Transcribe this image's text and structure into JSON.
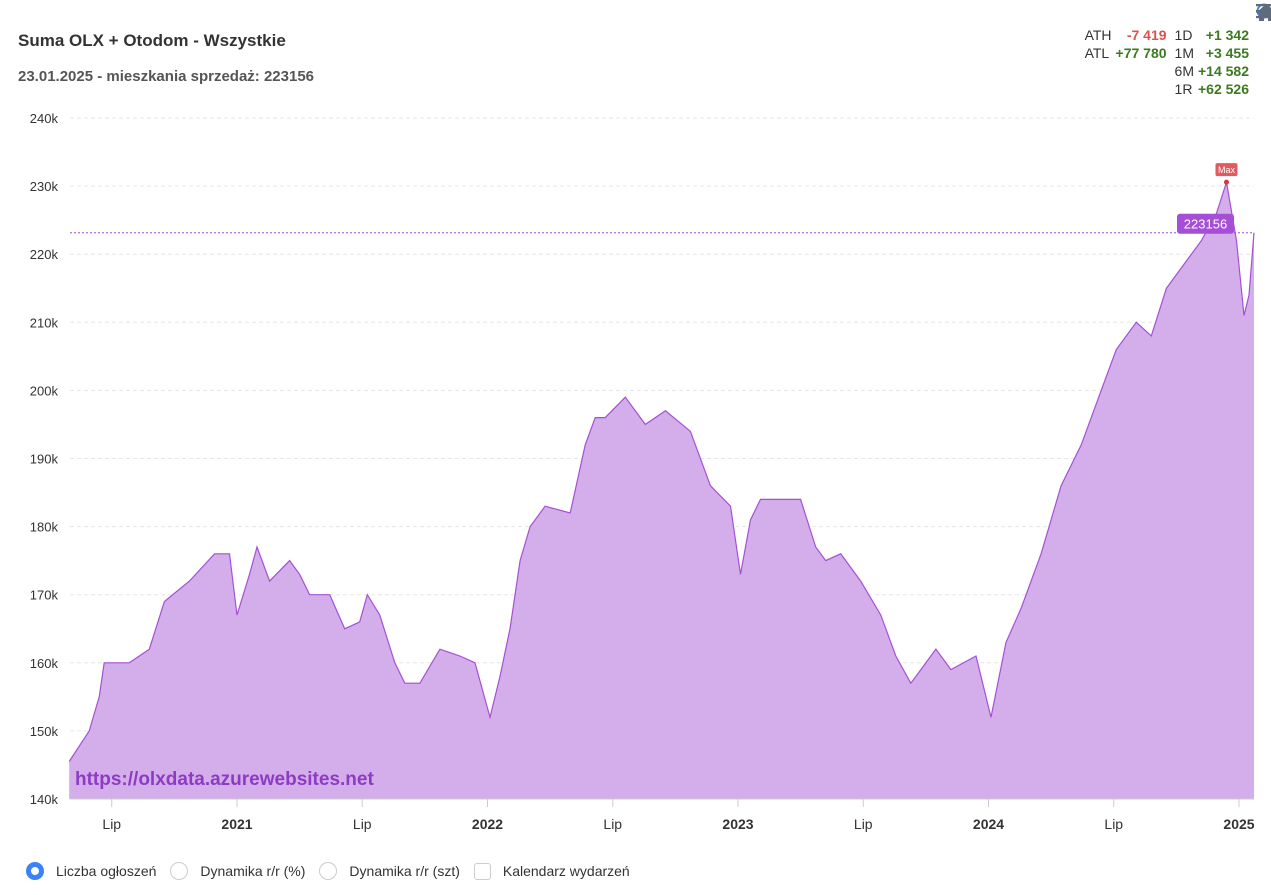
{
  "header": {
    "title": "Suma OLX + Otodom - Wszystkie",
    "subtitle": "23.01.2025 - mieszkania sprzedaż: 223156"
  },
  "stats": [
    {
      "label": "ATH",
      "value": "-7 419",
      "kind": "neg",
      "label2": "1D",
      "value2": "+1 342"
    },
    {
      "label": "ATL",
      "value": "+77 780",
      "kind": "pos",
      "label2": "1M",
      "value2": "+3 455"
    },
    {
      "label": "",
      "value": "",
      "kind": "",
      "label2": "6M",
      "value2": "+14 582"
    },
    {
      "label": "",
      "value": "",
      "kind": "",
      "label2": "1R",
      "value2": "+62 526"
    }
  ],
  "toolbar": {
    "icons": [
      "zoom-in-icon",
      "home-icon",
      "menu-icon"
    ]
  },
  "watermark": "https://olxdata.azurewebsites.net",
  "legend": [
    {
      "label": "Liczba ogłoszeń",
      "type": "radio",
      "checked": true
    },
    {
      "label": "Dynamika r/r (%)",
      "type": "radio",
      "checked": false
    },
    {
      "label": "Dynamika r/r (szt)",
      "type": "radio",
      "checked": false
    },
    {
      "label": "Kalendarz wydarzeń",
      "type": "checkbox",
      "checked": false
    }
  ],
  "chart_data": {
    "type": "area",
    "title": "Suma OLX + Otodom - Wszystkie",
    "ylim": [
      140000,
      240000
    ],
    "yticks": [
      140000,
      150000,
      160000,
      170000,
      180000,
      190000,
      200000,
      210000,
      220000,
      230000,
      240000
    ],
    "ytick_labels": [
      "140k",
      "150k",
      "160k",
      "170k",
      "180k",
      "190k",
      "200k",
      "210k",
      "220k",
      "230k",
      "240k"
    ],
    "xticks": [
      {
        "x": 2020.5,
        "label": "Lip",
        "bold": false
      },
      {
        "x": 2021,
        "label": "2021",
        "bold": true
      },
      {
        "x": 2021.5,
        "label": "Lip",
        "bold": false
      },
      {
        "x": 2022,
        "label": "2022",
        "bold": true
      },
      {
        "x": 2022.5,
        "label": "Lip",
        "bold": false
      },
      {
        "x": 2023,
        "label": "2023",
        "bold": true
      },
      {
        "x": 2023.5,
        "label": "Lip",
        "bold": false
      },
      {
        "x": 2024,
        "label": "2024",
        "bold": true
      },
      {
        "x": 2024.5,
        "label": "Lip",
        "bold": false
      },
      {
        "x": 2025,
        "label": "2025",
        "bold": true
      }
    ],
    "xlim": [
      2020.33,
      2025.06
    ],
    "grid": true,
    "color": "#a64fd6",
    "fill": "#d4aeea",
    "current_label": "223156",
    "current_value": 223156,
    "max_label": "Max",
    "max_point": {
      "x": 2024.95,
      "y": 230575
    },
    "x": [
      2020.33,
      2020.41,
      2020.45,
      2020.47,
      2020.57,
      2020.65,
      2020.71,
      2020.81,
      2020.91,
      2020.97,
      2021.0,
      2021.05,
      2021.08,
      2021.13,
      2021.21,
      2021.25,
      2021.29,
      2021.37,
      2021.43,
      2021.49,
      2021.52,
      2021.57,
      2021.63,
      2021.67,
      2021.73,
      2021.81,
      2021.89,
      2021.95,
      2022.01,
      2022.05,
      2022.09,
      2022.13,
      2022.17,
      2022.23,
      2022.33,
      2022.39,
      2022.43,
      2022.47,
      2022.55,
      2022.63,
      2022.71,
      2022.81,
      2022.89,
      2022.97,
      2023.01,
      2023.05,
      2023.09,
      2023.21,
      2023.25,
      2023.31,
      2023.35,
      2023.41,
      2023.49,
      2023.57,
      2023.63,
      2023.69,
      2023.73,
      2023.79,
      2023.85,
      2023.95,
      2024.01,
      2024.07,
      2024.13,
      2024.21,
      2024.29,
      2024.37,
      2024.45,
      2024.51,
      2024.59,
      2024.65,
      2024.71,
      2024.79,
      2024.85,
      2024.91,
      2024.95,
      2024.99,
      2025.02,
      2025.04,
      2025.06
    ],
    "y": [
      145500,
      150000,
      155000,
      160000,
      160000,
      162000,
      169000,
      172000,
      176000,
      176000,
      167000,
      173000,
      177000,
      172000,
      175000,
      173000,
      170000,
      170000,
      165000,
      166000,
      170000,
      167000,
      160000,
      157000,
      157000,
      162000,
      161000,
      160000,
      152000,
      158000,
      165000,
      175000,
      180000,
      183000,
      182000,
      192000,
      196000,
      196000,
      199000,
      195000,
      197000,
      194000,
      186000,
      183000,
      173000,
      181000,
      184000,
      184000,
      184000,
      177000,
      175000,
      176000,
      172000,
      167000,
      161000,
      157000,
      159000,
      162000,
      159000,
      161000,
      152000,
      163000,
      168000,
      176000,
      186000,
      192000,
      200000,
      206000,
      210000,
      208000,
      215000,
      219000,
      222000,
      226000,
      230575,
      222000,
      211000,
      214000,
      223156
    ]
  }
}
